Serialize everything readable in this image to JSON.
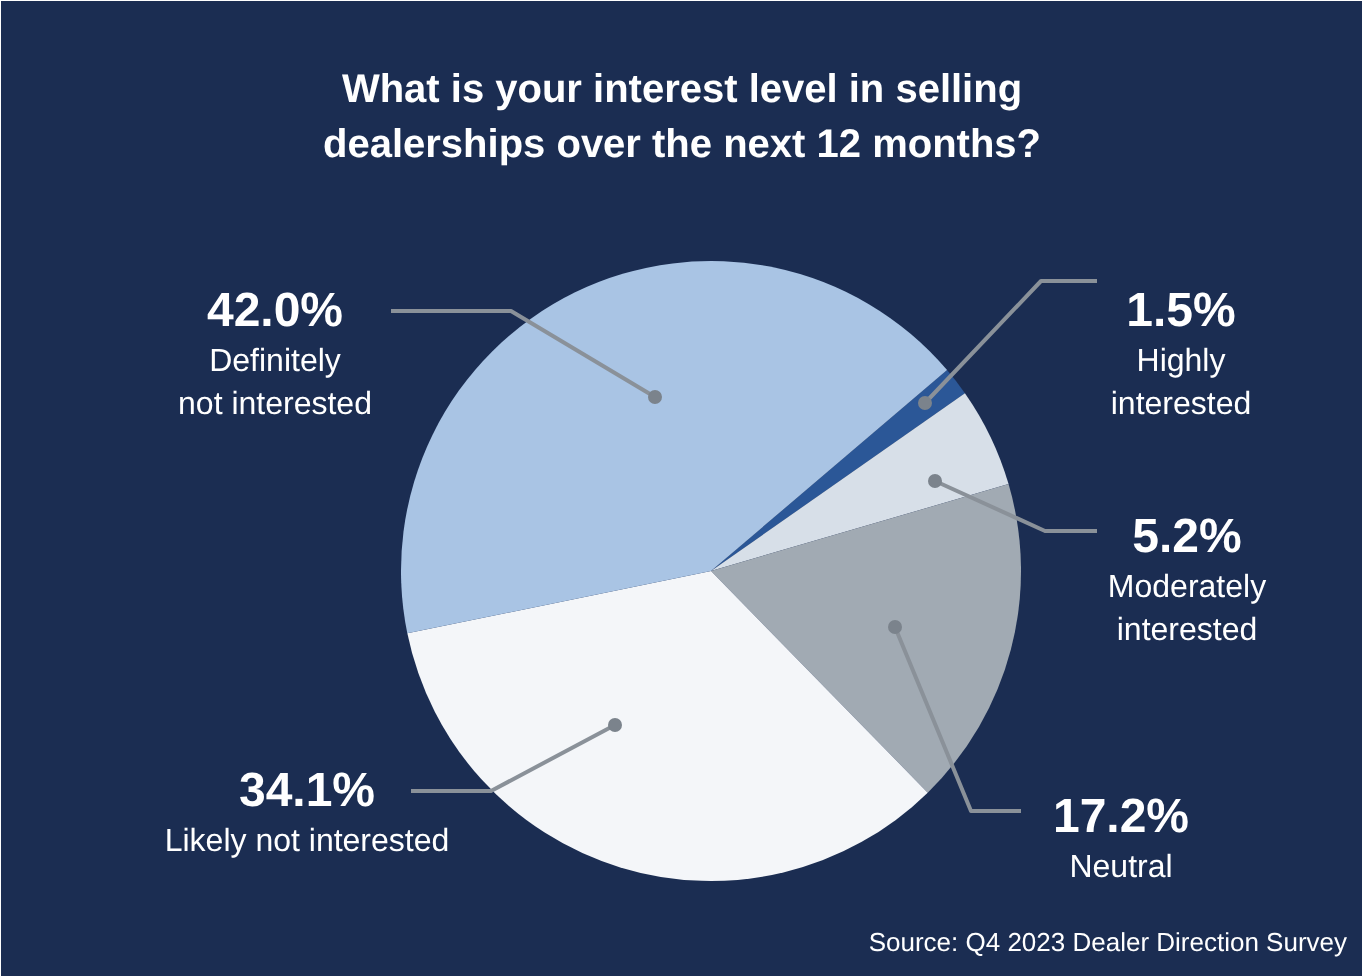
{
  "chart_data": {
    "type": "pie",
    "title": "What is your interest level in selling dealerships over the next 12 months?",
    "categories": [
      "Highly interested",
      "Moderately interested",
      "Neutral",
      "Likely not interested",
      "Definitely not interested"
    ],
    "values": [
      1.5,
      5.2,
      17.2,
      34.1,
      42.0
    ],
    "colors": [
      "#2b5797",
      "#d7dfe8",
      "#a1aab3",
      "#f4f6f9",
      "#a9c4e4"
    ],
    "value_labels": [
      "1.5%",
      "5.2%",
      "17.2%",
      "34.1%",
      "42.0%"
    ],
    "annotations": [
      "Source: Q4 2023 Dealer Direction Survey"
    ]
  }
}
